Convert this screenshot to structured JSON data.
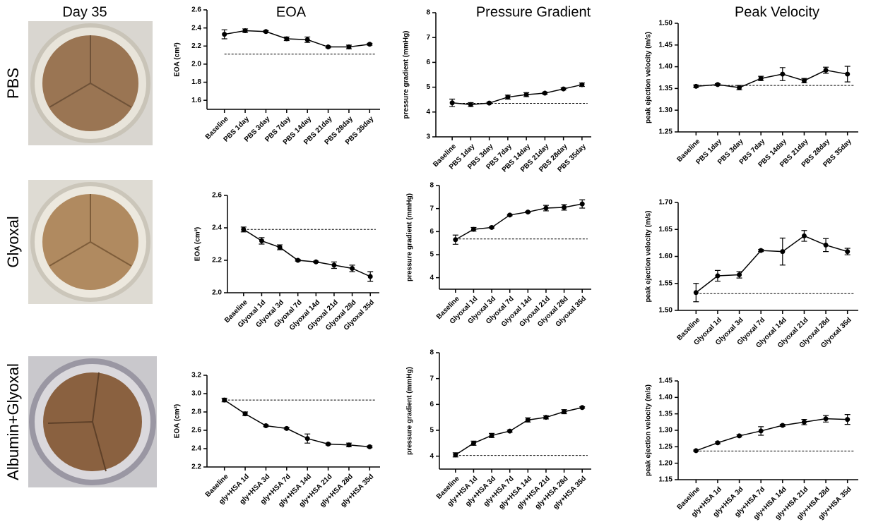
{
  "column_headers": [
    "Day 35",
    "EOA",
    "Pressure Gradient",
    "Peak Velocity"
  ],
  "row_labels": [
    "PBS",
    "Glyoxal",
    "Albumin+Glyoxal"
  ],
  "chart_data": [
    {
      "type": "line",
      "y_label": "EOA (cm²)",
      "categories": [
        "Baseline",
        "PBS 1day",
        "PBS 3day",
        "PBS 7day",
        "PBS 14day",
        "PBS 21day",
        "PBS 28day",
        "PBS 35day"
      ],
      "series": [
        {
          "color": "#000000",
          "values": [
            2.33,
            2.37,
            2.36,
            2.28,
            2.27,
            2.19,
            2.19,
            2.22
          ],
          "errors": [
            0.05,
            0.02,
            0.01,
            0.02,
            0.03,
            0.01,
            0.02,
            0.01
          ]
        }
      ],
      "reference_line": 2.11,
      "ylim": [
        1.5,
        2.6
      ],
      "yticks": [
        1.6,
        1.8,
        {
          "value": 2.0,
          "label": "2.0"
        },
        2.2,
        2.4,
        2.6
      ]
    },
    {
      "type": "line",
      "y_label": "pressure gradient (mmHg)",
      "categories": [
        "Baseline",
        "PBS 1day",
        "PBS 3day",
        "PBS 7day",
        "PBS 14day",
        "PBS 21day",
        "PBS 28day",
        "PBS 35day"
      ],
      "series": [
        {
          "color": "#000000",
          "values": [
            4.37,
            4.3,
            4.36,
            4.6,
            4.7,
            4.76,
            4.93,
            5.1
          ],
          "errors": [
            0.15,
            0.08,
            0.03,
            0.08,
            0.08,
            0.04,
            0.04,
            0.07
          ]
        }
      ],
      "reference_line": 4.35,
      "ylim": [
        3,
        8
      ],
      "yticks": [
        3,
        4,
        5,
        6,
        7,
        8
      ]
    },
    {
      "type": "line",
      "y_label": "peak ejection velocity (m/s)",
      "categories": [
        "Baseline",
        "PBS 1day",
        "PBS 3day",
        "PBS 7day",
        "PBS 14day",
        "PBS 21day",
        "PBS 28day",
        "PBS 35day"
      ],
      "series": [
        {
          "color": "#000000",
          "values": [
            1.355,
            1.359,
            1.352,
            1.373,
            1.383,
            1.368,
            1.392,
            1.383
          ],
          "errors": [
            0.003,
            0.002,
            0.005,
            0.005,
            0.015,
            0.005,
            0.007,
            0.018
          ]
        }
      ],
      "reference_line": 1.357,
      "ylim": [
        1.25,
        1.5
      ],
      "yticks": [
        {
          "value": 1.25,
          "label": "1.25"
        },
        {
          "value": 1.3,
          "label": "1.30"
        },
        {
          "value": 1.35,
          "label": "1.35"
        },
        {
          "value": 1.4,
          "label": "1.40"
        },
        {
          "value": 1.45,
          "label": "1.45"
        },
        {
          "value": 1.5,
          "label": "1.50"
        }
      ]
    },
    {
      "type": "line",
      "y_label": "EOA (cm²)",
      "categories": [
        "Baseline",
        "Glyoxal 1d",
        "Glyoxal 3d",
        "Glyoxal 7d",
        "Glyoxal 14d",
        "Glyoxal 21d",
        "Glyoxal 28d",
        "Glyoxal 35d"
      ],
      "series": [
        {
          "color": "#000000",
          "values": [
            2.39,
            2.32,
            2.28,
            2.2,
            2.19,
            2.17,
            2.15,
            2.1
          ],
          "errors": [
            0.015,
            0.02,
            0.015,
            0.005,
            0.005,
            0.02,
            0.02,
            0.03
          ]
        }
      ],
      "reference_line": 2.39,
      "ylim": [
        2.0,
        2.6
      ],
      "yticks": [
        {
          "value": 2.0,
          "label": "2.0"
        },
        2.2,
        2.4,
        2.6
      ]
    },
    {
      "type": "line",
      "y_label": "pressure gradient (mmHg)",
      "categories": [
        "Baseline",
        "Glyoxal 1d",
        "Glyoxal 3d",
        "Glyoxal 7d",
        "Glyoxal 14d",
        "Glyoxal 21d",
        "Glyoxal 28d",
        "Glyoxal 35d"
      ],
      "series": [
        {
          "color": "#000000",
          "values": [
            5.65,
            6.1,
            6.18,
            6.72,
            6.85,
            7.02,
            7.05,
            7.2
          ],
          "errors": [
            0.2,
            0.08,
            0.03,
            0.03,
            0.03,
            0.12,
            0.12,
            0.18
          ]
        }
      ],
      "reference_line": 5.68,
      "ylim": [
        3.5,
        8
      ],
      "yticks": [
        4,
        5,
        6,
        7,
        8
      ]
    },
    {
      "type": "line",
      "y_label": "peak ejection velocity (m/s)",
      "categories": [
        "Baseline",
        "Glyoxal 1d",
        "Glyoxal 3d",
        "Glyoxal 7d",
        "Glyoxal 14d",
        "Glyoxal 21d",
        "Glyoxal 28d",
        "Glyoxal 35d"
      ],
      "series": [
        {
          "color": "#000000",
          "values": [
            1.533,
            1.564,
            1.566,
            1.611,
            1.609,
            1.638,
            1.621,
            1.609
          ],
          "errors": [
            0.017,
            0.01,
            0.006,
            0.002,
            0.025,
            0.01,
            0.012,
            0.006
          ]
        }
      ],
      "reference_line": 1.531,
      "ylim": [
        1.5,
        1.7
      ],
      "yticks": [
        {
          "value": 1.5,
          "label": "1.50"
        },
        {
          "value": 1.55,
          "label": "1.55"
        },
        {
          "value": 1.6,
          "label": "1.60"
        },
        {
          "value": 1.65,
          "label": "1.65"
        },
        {
          "value": 1.7,
          "label": "1.70"
        }
      ]
    },
    {
      "type": "line",
      "y_label": "EOA (cm²)",
      "categories": [
        "Baseline",
        "gly+HSA 1d",
        "gly+HSA 3d",
        "gly+HSA 7d",
        "gly+HSA 14d",
        "gly+HSA 21d",
        "gly+HSA 28d",
        "gly+HSA 35d"
      ],
      "series": [
        {
          "color": "#000000",
          "values": [
            2.93,
            2.78,
            2.65,
            2.62,
            2.51,
            2.45,
            2.44,
            2.42
          ],
          "errors": [
            0.02,
            0.02,
            0.01,
            0.01,
            0.05,
            0.01,
            0.02,
            0.01
          ]
        }
      ],
      "reference_line": 2.93,
      "ylim": [
        2.2,
        3.2
      ],
      "yticks": [
        2.2,
        2.4,
        2.6,
        2.8,
        {
          "value": 3.0,
          "label": "3.0"
        },
        3.2
      ]
    },
    {
      "type": "line",
      "y_label": "pressure gradient (mmHg)",
      "categories": [
        "Baseline",
        "gly+HSA 1d",
        "gly+HSA 3d",
        "gly+HSA 7d",
        "gly+HSA 14d",
        "gly+HSA 21d",
        "gly+HSA 28d",
        "gly+HSA 35d"
      ],
      "series": [
        {
          "color": "#000000",
          "values": [
            4.05,
            4.5,
            4.8,
            4.97,
            5.4,
            5.5,
            5.72,
            5.88
          ],
          "errors": [
            0.08,
            0.08,
            0.08,
            0.04,
            0.08,
            0.06,
            0.08,
            0.03
          ]
        }
      ],
      "reference_line": 4.03,
      "ylim": [
        3.5,
        8
      ],
      "yticks": [
        4,
        5,
        6,
        7,
        8
      ]
    },
    {
      "type": "line",
      "y_label": "peak ejection velocity (m/s)",
      "categories": [
        "Baseline",
        "gly+HSA 1d",
        "gly+HSA 3d",
        "gly+HSA 7d",
        "gly+HSA 14d",
        "gly+HSA 21d",
        "gly+HSA 28d",
        "gly+HSA 35d"
      ],
      "series": [
        {
          "color": "#000000",
          "values": [
            1.238,
            1.262,
            1.283,
            1.298,
            1.315,
            1.325,
            1.335,
            1.333
          ],
          "errors": [
            0.002,
            0.003,
            0.003,
            0.013,
            0.003,
            0.008,
            0.01,
            0.015
          ]
        }
      ],
      "reference_line": 1.237,
      "ylim": [
        1.15,
        1.45
      ],
      "yticks": [
        1.15,
        {
          "value": 1.2,
          "label": "1.20"
        },
        1.25,
        {
          "value": 1.3,
          "label": "1.30"
        },
        1.35,
        {
          "value": 1.4,
          "label": "1.40"
        },
        1.45
      ]
    }
  ]
}
